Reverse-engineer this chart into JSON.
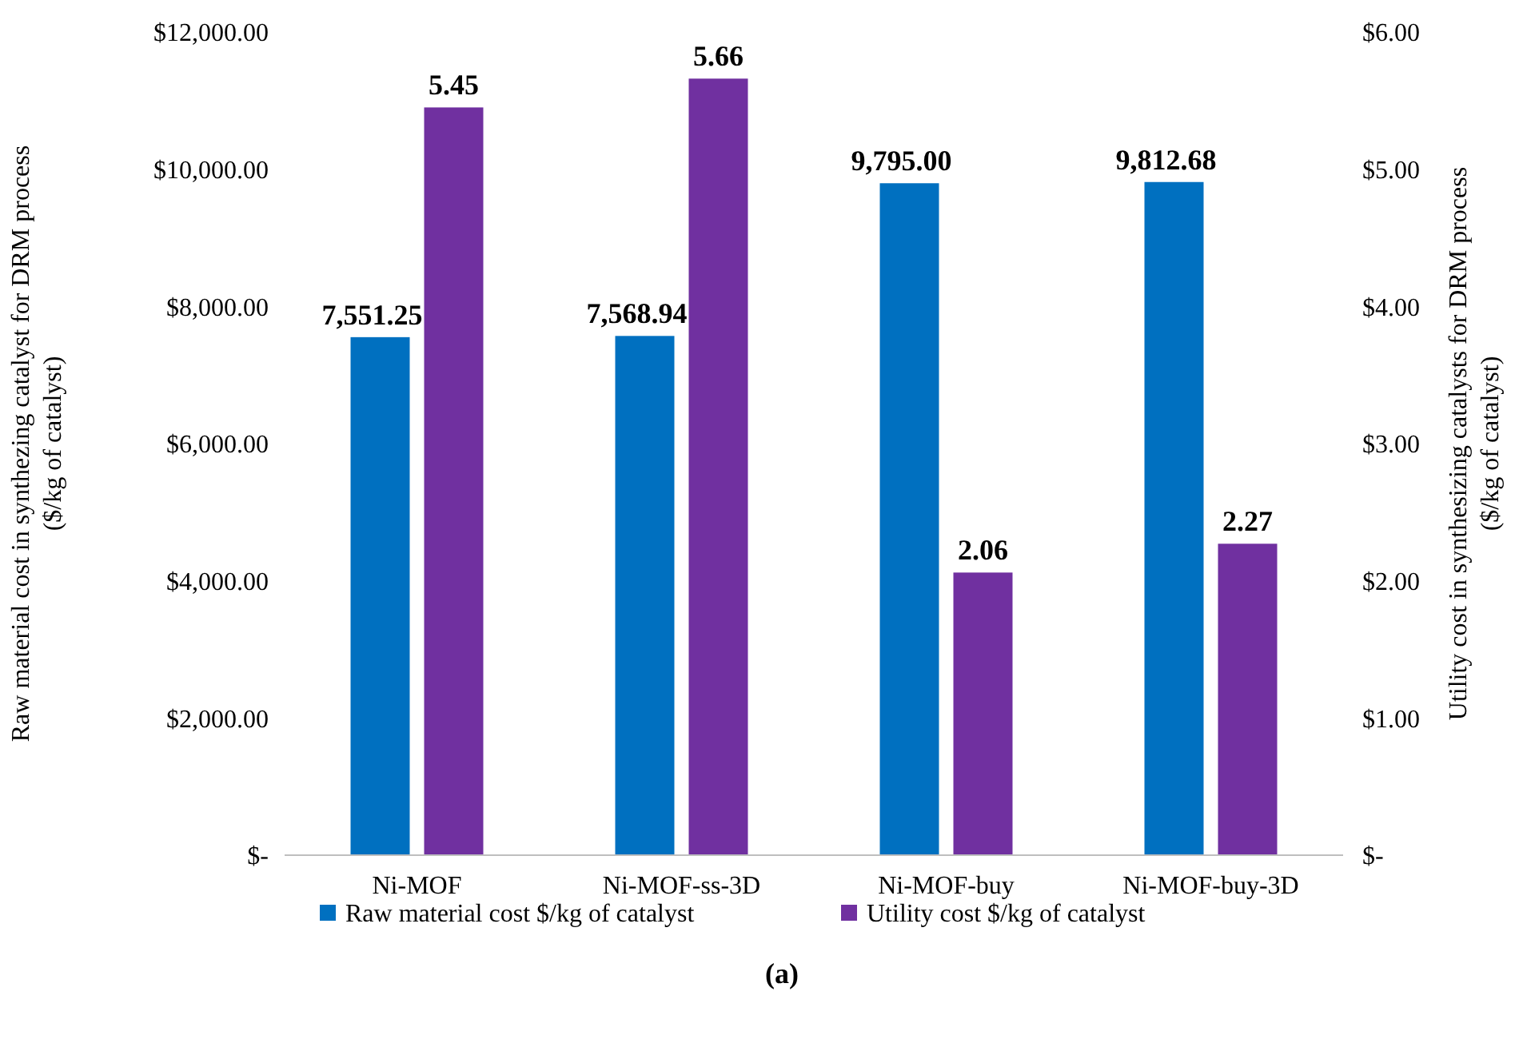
{
  "chart_data": {
    "type": "bar",
    "categories": [
      "Ni-MOF",
      "Ni-MOF-ss-3D",
      "Ni-MOF-buy",
      "Ni-MOF-buy-3D"
    ],
    "series": [
      {
        "name": "Raw material cost $/kg of catalyst",
        "color": "#0070c0",
        "values": [
          7551.25,
          7568.94,
          9795.0,
          9812.68
        ],
        "value_labels": [
          "7,551.25",
          "7,568.94",
          "9,795.00",
          "9,812.68"
        ]
      },
      {
        "name": "Utility cost $/kg of catalyst",
        "color": "#7030a0",
        "axis": "y2",
        "values": [
          5.45,
          5.66,
          2.06,
          2.27
        ],
        "value_labels": [
          "5.45",
          "5.66",
          "2.06",
          "2.27"
        ]
      }
    ],
    "ylabel": "Raw material cost in synthezing catalyst for DRM process\n($/kg of catalyst)",
    "y2label": "Utility cost in synthesizing catalysts for DRM process\n($/kg of catalyst)",
    "ylim": [
      0,
      12000
    ],
    "yticks": [
      {
        "value": 0,
        "label": "$-"
      },
      {
        "value": 2000,
        "label": "$2,000.00"
      },
      {
        "value": 4000,
        "label": "$4,000.00"
      },
      {
        "value": 6000,
        "label": "$6,000.00"
      },
      {
        "value": 8000,
        "label": "$8,000.00"
      },
      {
        "value": 10000,
        "label": "$10,000.00"
      },
      {
        "value": 12000,
        "label": "$12,000.00"
      }
    ],
    "y2lim": [
      0,
      6
    ],
    "y2ticks": [
      {
        "value": 0,
        "label": "$-"
      },
      {
        "value": 1,
        "label": "$1.00"
      },
      {
        "value": 2,
        "label": "$2.00"
      },
      {
        "value": 3,
        "label": "$3.00"
      },
      {
        "value": 4,
        "label": "$4.00"
      },
      {
        "value": 5,
        "label": "$5.00"
      },
      {
        "value": 6,
        "label": "$6.00"
      }
    ],
    "grid": false,
    "legend": "bottom",
    "annotations": [
      "(a)"
    ]
  }
}
